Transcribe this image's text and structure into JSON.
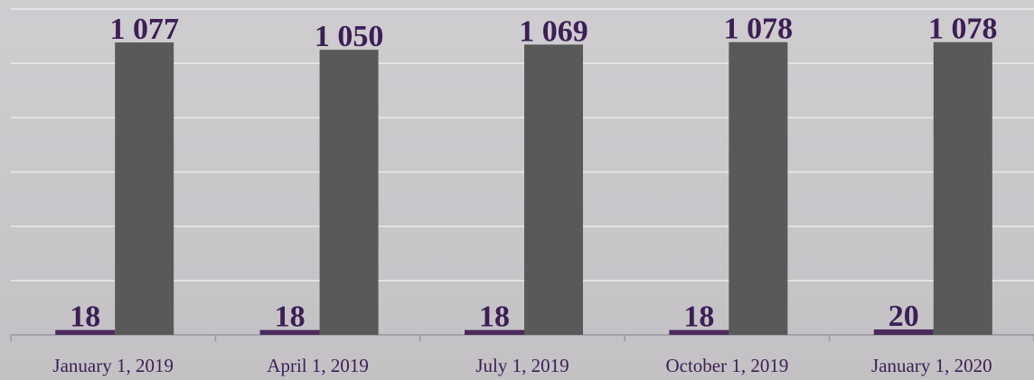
{
  "chart_data": {
    "type": "bar",
    "categories": [
      "January 1, 2019",
      "April 1, 2019",
      "July 1, 2019",
      "October 1, 2019",
      "January 1, 2020"
    ],
    "series": [
      {
        "color": "#4b2a5c",
        "values": [
          18,
          18,
          18,
          18,
          20
        ]
      },
      {
        "color": "#595959",
        "values": [
          1077,
          1050,
          1069,
          1078,
          1078
        ],
        "value_labels": [
          "1 077",
          "1 050",
          "1 069",
          "1 078",
          "1 078"
        ]
      }
    ],
    "ylim": [
      0,
      1200
    ],
    "yticks": [
      0,
      200,
      400,
      600,
      800,
      1000,
      1200
    ],
    "grid": true
  }
}
